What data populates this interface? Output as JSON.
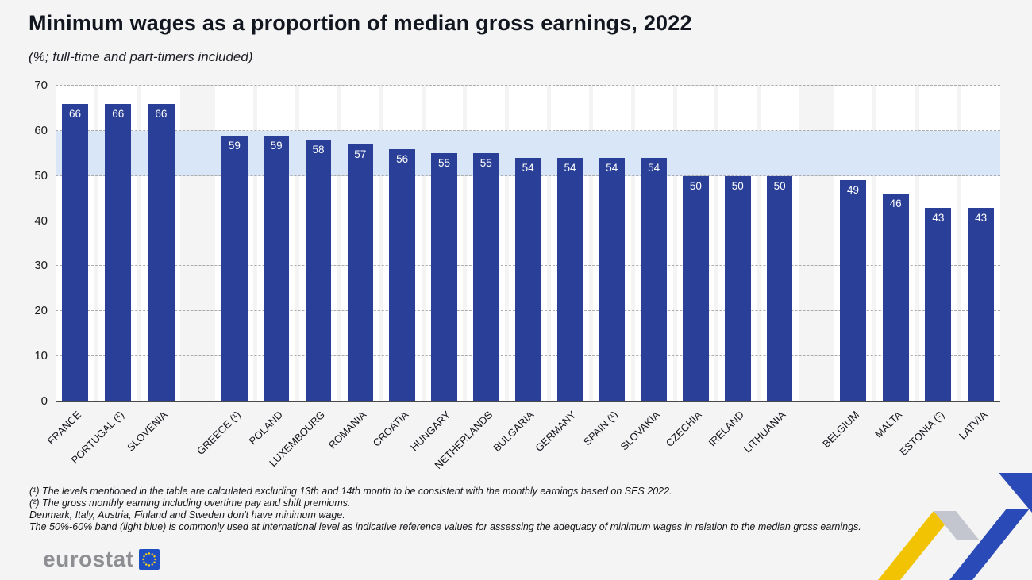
{
  "chart_data": {
    "type": "bar",
    "title": "Minimum wages as a proportion of median gross earnings, 2022",
    "subtitle": "(%; full-time and part-timers included)",
    "xlabel": "",
    "ylabel": "",
    "ylim": [
      0,
      70
    ],
    "yticks": [
      0,
      10,
      20,
      30,
      40,
      50,
      60,
      70
    ],
    "grid": "dashed horizontal",
    "legend": "none",
    "x_label_rotation_deg": 45,
    "reference_band": {
      "from": 50,
      "to": 60,
      "label": "50%-60% indicative reference band (light blue)"
    },
    "groups": [
      {
        "categories": [
          "FRANCE",
          "PORTUGAL (¹)",
          "SLOVENIA"
        ],
        "values": [
          66,
          66,
          66
        ]
      },
      {
        "categories": [
          "GREECE (¹)",
          "POLAND",
          "LUXEMBOURG",
          "ROMANIA",
          "CROATIA",
          "HUNGARY",
          "NETHERLANDS",
          "BULGARIA",
          "GERMANY",
          "SPAIN (¹)",
          "SLOVAKIA",
          "CZECHIA",
          "IRELAND",
          "LITHUANIA"
        ],
        "values": [
          59,
          59,
          58,
          57,
          56,
          55,
          55,
          54,
          54,
          54,
          54,
          50,
          50,
          50
        ]
      },
      {
        "categories": [
          "BELGIUM",
          "MALTA",
          "ESTONIA (²)",
          "LATVIA"
        ],
        "values": [
          49,
          46,
          43,
          43
        ]
      }
    ]
  },
  "footnotes": [
    "(¹) The levels mentioned in the table are calculated excluding 13th and 14th month to be consistent with the monthly earnings based on SES 2022.",
    "(²) The gross monthly earning including overtime pay and shift premiums.",
    "Denmark, Italy, Austria, Finland and Sweden don't have minimum wage.",
    "The 50%-60% band (light blue) is commonly used at international level as indicative reference values for assessing the adequacy of minimum wages in relation to the median gross earnings."
  ],
  "footer": {
    "logo_text": "eurostat"
  },
  "colors": {
    "bar": "#2a3f97",
    "band": "#d9e6f7",
    "ribbon_yellow": "#f2c303",
    "ribbon_blue": "#2a4ab8",
    "ribbon_gray": "#c3c6cf",
    "eu_flag_blue": "#1e4fc2",
    "star_yellow": "#ffd617"
  }
}
